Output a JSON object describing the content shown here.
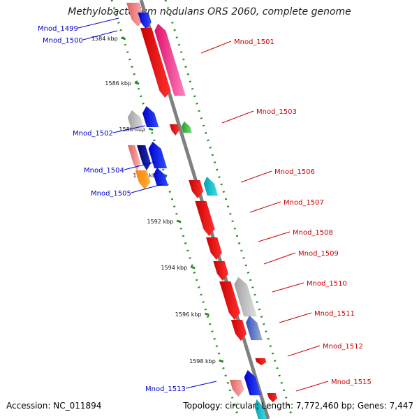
{
  "title": "Methylobacterium nodulans ORS 2060, complete genome",
  "footer": {
    "accession": "Accession: NC_011894",
    "summary": "Topology: circular; Length: 7,772,460 bp; Genes: 7,447"
  },
  "colors": {
    "backbone": "#808080",
    "tick": "#228b22",
    "left_label": "#0000cc",
    "right_label": "#cc0000"
  },
  "kbp_labels": [
    "1584 kbp",
    "1586 kbp",
    "1588 kbp",
    "1590 kbp",
    "1592 kbp",
    "1594 kbp",
    "1596 kbp",
    "1598 kbp"
  ],
  "left_genes": [
    "Mnod_1499",
    "Mnod_1500",
    "Mnod_1502",
    "Mnod_1504",
    "Mnod_1505",
    "Mnod_1513"
  ],
  "right_genes": [
    "Mnod_1501",
    "Mnod_1503",
    "Mnod_1506",
    "Mnod_1507",
    "Mnod_1508",
    "Mnod_1509",
    "Mnod_1510",
    "Mnod_1511",
    "Mnod_1512",
    "Mnod_1515"
  ]
}
